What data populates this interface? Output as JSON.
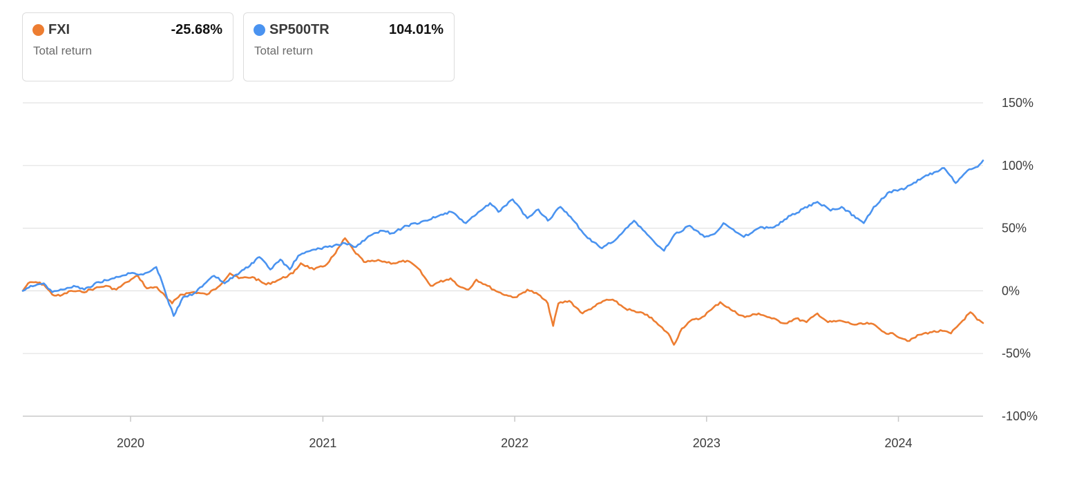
{
  "legend": [
    {
      "name": "FXI",
      "value": "-25.68%",
      "subtitle": "Total return",
      "color": "#ed7d31"
    },
    {
      "name": "SP500TR",
      "value": "104.01%",
      "subtitle": "Total return",
      "color": "#4a93f0"
    }
  ],
  "chart_data": {
    "type": "line",
    "title": "",
    "xlabel": "",
    "ylabel": "",
    "y_unit": "%",
    "ylim": [
      -100,
      150
    ],
    "xlim": [
      "2019-06-10",
      "2024-06-10"
    ],
    "y_ticks": [
      "150%",
      "100%",
      "50%",
      "0%",
      "-50%",
      "-100%"
    ],
    "y_tick_values": [
      150,
      100,
      50,
      0,
      -50,
      -100
    ],
    "x_ticks": [
      "2020",
      "2021",
      "2022",
      "2023",
      "2024"
    ],
    "x_tick_dates": [
      "2020-01-01",
      "2021-01-01",
      "2022-01-01",
      "2023-01-01",
      "2024-01-01"
    ],
    "grid": "horizontal",
    "legend_position": "top-left",
    "series": [
      {
        "name": "FXI",
        "color": "#ed7d31",
        "points": [
          [
            "2019-06-10",
            0
          ],
          [
            "2019-06-20",
            6
          ],
          [
            "2019-07-05",
            7
          ],
          [
            "2019-07-20",
            5
          ],
          [
            "2019-08-05",
            -3
          ],
          [
            "2019-08-20",
            -4
          ],
          [
            "2019-09-10",
            0
          ],
          [
            "2019-10-01",
            -1
          ],
          [
            "2019-10-25",
            2
          ],
          [
            "2019-11-15",
            4
          ],
          [
            "2019-12-05",
            1
          ],
          [
            "2019-12-25",
            7
          ],
          [
            "2020-01-15",
            12
          ],
          [
            "2020-02-01",
            2
          ],
          [
            "2020-02-20",
            3
          ],
          [
            "2020-03-10",
            -6
          ],
          [
            "2020-03-20",
            -10
          ],
          [
            "2020-04-05",
            -3
          ],
          [
            "2020-05-01",
            -1
          ],
          [
            "2020-05-25",
            -3
          ],
          [
            "2020-06-15",
            3
          ],
          [
            "2020-07-08",
            14
          ],
          [
            "2020-07-25",
            10
          ],
          [
            "2020-08-20",
            11
          ],
          [
            "2020-09-15",
            5
          ],
          [
            "2020-10-10",
            9
          ],
          [
            "2020-11-05",
            14
          ],
          [
            "2020-11-20",
            22
          ],
          [
            "2020-12-15",
            17
          ],
          [
            "2021-01-05",
            20
          ],
          [
            "2021-01-25",
            30
          ],
          [
            "2021-02-12",
            42
          ],
          [
            "2021-03-01",
            32
          ],
          [
            "2021-03-20",
            23
          ],
          [
            "2021-04-20",
            24
          ],
          [
            "2021-05-15",
            22
          ],
          [
            "2021-06-10",
            24
          ],
          [
            "2021-07-01",
            18
          ],
          [
            "2021-07-25",
            4
          ],
          [
            "2021-08-10",
            7
          ],
          [
            "2021-09-01",
            10
          ],
          [
            "2021-09-20",
            3
          ],
          [
            "2021-10-05",
            1
          ],
          [
            "2021-10-20",
            9
          ],
          [
            "2021-11-10",
            4
          ],
          [
            "2021-12-01",
            -1
          ],
          [
            "2021-12-20",
            -4
          ],
          [
            "2022-01-05",
            -5
          ],
          [
            "2022-01-25",
            1
          ],
          [
            "2022-02-15",
            -3
          ],
          [
            "2022-03-05",
            -10
          ],
          [
            "2022-03-15",
            -28
          ],
          [
            "2022-03-25",
            -10
          ],
          [
            "2022-04-15",
            -8
          ],
          [
            "2022-05-10",
            -18
          ],
          [
            "2022-05-30",
            -13
          ],
          [
            "2022-06-25",
            -7
          ],
          [
            "2022-07-10",
            -8
          ],
          [
            "2022-07-30",
            -14
          ],
          [
            "2022-08-20",
            -17
          ],
          [
            "2022-09-10",
            -19
          ],
          [
            "2022-10-01",
            -27
          ],
          [
            "2022-10-20",
            -34
          ],
          [
            "2022-10-31",
            -43
          ],
          [
            "2022-11-15",
            -30
          ],
          [
            "2022-12-01",
            -24
          ],
          [
            "2022-12-20",
            -22
          ],
          [
            "2023-01-10",
            -15
          ],
          [
            "2023-01-27",
            -9
          ],
          [
            "2023-02-20",
            -16
          ],
          [
            "2023-03-15",
            -21
          ],
          [
            "2023-04-10",
            -18
          ],
          [
            "2023-05-05",
            -22
          ],
          [
            "2023-05-30",
            -26
          ],
          [
            "2023-06-20",
            -22
          ],
          [
            "2023-07-10",
            -25
          ],
          [
            "2023-07-31",
            -18
          ],
          [
            "2023-08-20",
            -25
          ],
          [
            "2023-09-15",
            -24
          ],
          [
            "2023-10-10",
            -27
          ],
          [
            "2023-11-10",
            -26
          ],
          [
            "2023-12-05",
            -33
          ],
          [
            "2023-12-25",
            -35
          ],
          [
            "2024-01-22",
            -40
          ],
          [
            "2024-02-10",
            -35
          ],
          [
            "2024-03-01",
            -33
          ],
          [
            "2024-03-25",
            -32
          ],
          [
            "2024-04-10",
            -34
          ],
          [
            "2024-04-25",
            -27
          ],
          [
            "2024-05-17",
            -17
          ],
          [
            "2024-05-30",
            -23
          ],
          [
            "2024-06-10",
            -25.68
          ]
        ]
      },
      {
        "name": "SP500TR",
        "color": "#4a93f0",
        "points": [
          [
            "2019-06-10",
            0
          ],
          [
            "2019-06-25",
            4
          ],
          [
            "2019-07-20",
            6
          ],
          [
            "2019-08-05",
            -1
          ],
          [
            "2019-08-25",
            1
          ],
          [
            "2019-09-15",
            4
          ],
          [
            "2019-10-05",
            1
          ],
          [
            "2019-11-01",
            7
          ],
          [
            "2019-12-01",
            10
          ],
          [
            "2019-12-31",
            14
          ],
          [
            "2020-01-25",
            13
          ],
          [
            "2020-02-19",
            19
          ],
          [
            "2020-03-01",
            7
          ],
          [
            "2020-03-10",
            -5
          ],
          [
            "2020-03-23",
            -20
          ],
          [
            "2020-04-10",
            -5
          ],
          [
            "2020-05-01",
            -2
          ],
          [
            "2020-06-08",
            12
          ],
          [
            "2020-06-28",
            6
          ],
          [
            "2020-07-20",
            13
          ],
          [
            "2020-08-15",
            20
          ],
          [
            "2020-09-02",
            27
          ],
          [
            "2020-09-23",
            17
          ],
          [
            "2020-10-12",
            25
          ],
          [
            "2020-10-30",
            17
          ],
          [
            "2020-11-15",
            28
          ],
          [
            "2020-12-15",
            33
          ],
          [
            "2021-01-10",
            35
          ],
          [
            "2021-02-12",
            38
          ],
          [
            "2021-03-05",
            35
          ],
          [
            "2021-03-25",
            42
          ],
          [
            "2021-04-20",
            48
          ],
          [
            "2021-05-12",
            46
          ],
          [
            "2021-06-10",
            52
          ],
          [
            "2021-07-15",
            56
          ],
          [
            "2021-08-10",
            60
          ],
          [
            "2021-09-02",
            63
          ],
          [
            "2021-09-30",
            54
          ],
          [
            "2021-10-20",
            61
          ],
          [
            "2021-11-15",
            70
          ],
          [
            "2021-12-01",
            63
          ],
          [
            "2021-12-28",
            73
          ],
          [
            "2022-01-25",
            58
          ],
          [
            "2022-02-15",
            65
          ],
          [
            "2022-03-05",
            56
          ],
          [
            "2022-03-29",
            67
          ],
          [
            "2022-04-25",
            55
          ],
          [
            "2022-05-20",
            42
          ],
          [
            "2022-06-16",
            34
          ],
          [
            "2022-07-15",
            42
          ],
          [
            "2022-08-16",
            56
          ],
          [
            "2022-09-10",
            45
          ],
          [
            "2022-09-30",
            36
          ],
          [
            "2022-10-12",
            32
          ],
          [
            "2022-11-01",
            45
          ],
          [
            "2022-11-30",
            52
          ],
          [
            "2022-12-28",
            43
          ],
          [
            "2023-01-20",
            47
          ],
          [
            "2023-02-02",
            54
          ],
          [
            "2023-02-25",
            47
          ],
          [
            "2023-03-13",
            43
          ],
          [
            "2023-04-10",
            50
          ],
          [
            "2023-05-10",
            51
          ],
          [
            "2023-06-10",
            60
          ],
          [
            "2023-07-31",
            71
          ],
          [
            "2023-08-25",
            64
          ],
          [
            "2023-09-15",
            67
          ],
          [
            "2023-10-27",
            54
          ],
          [
            "2023-11-15",
            67
          ],
          [
            "2023-12-15",
            79
          ],
          [
            "2024-01-15",
            82
          ],
          [
            "2024-02-15",
            90
          ],
          [
            "2024-03-28",
            98
          ],
          [
            "2024-04-19",
            86
          ],
          [
            "2024-05-15",
            97
          ],
          [
            "2024-05-31",
            99
          ],
          [
            "2024-06-10",
            104.01
          ]
        ]
      }
    ]
  }
}
